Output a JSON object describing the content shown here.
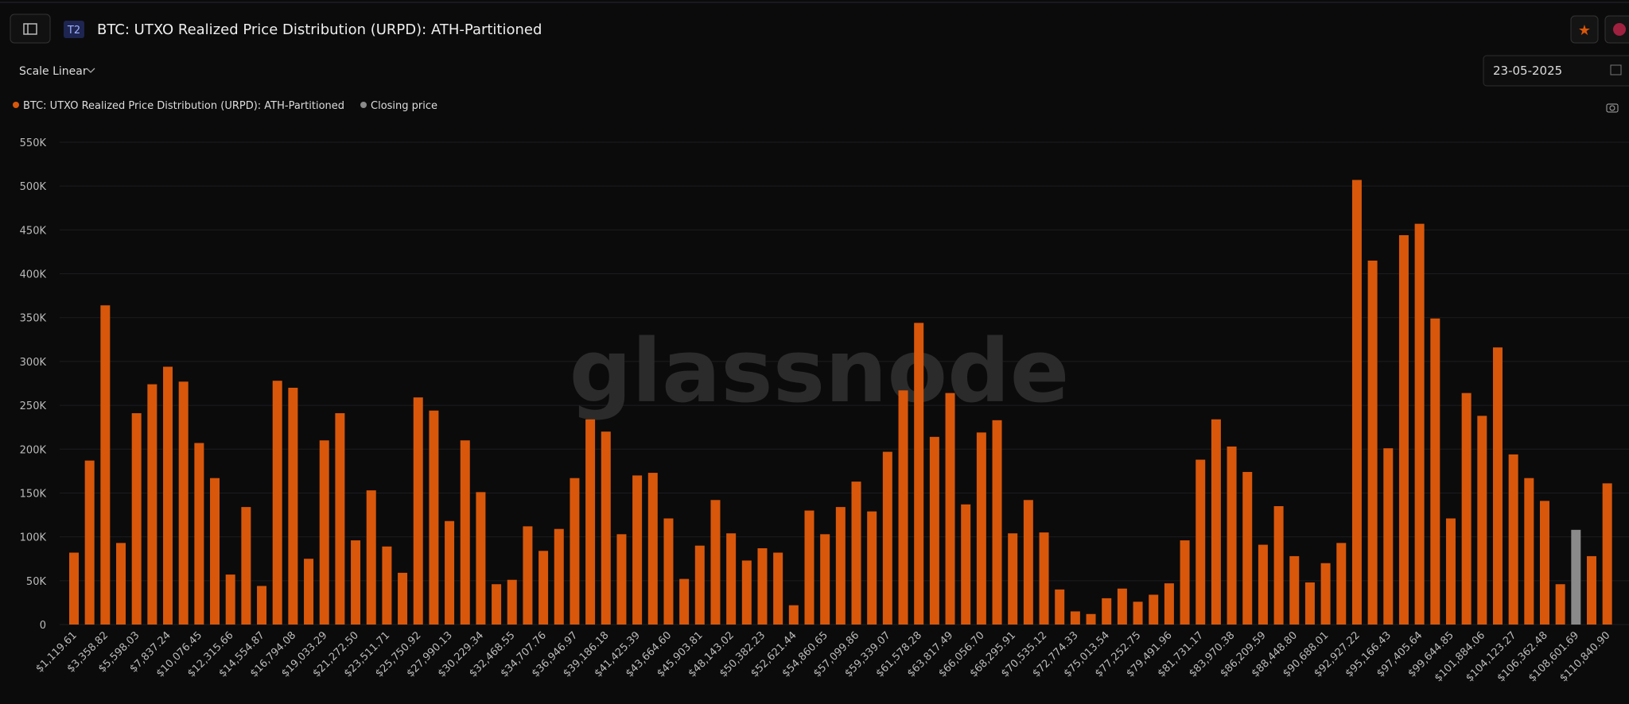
{
  "ui": {
    "badge": "T2",
    "scale_label": "Scale Linear",
    "date": "23-05-2025",
    "watermark": "glassnode"
  },
  "chart_data": {
    "type": "bar",
    "title": "BTC: UTXO Realized Price Distribution (URPD): ATH-Partitioned",
    "categories": [
      "$1,119.61",
      null,
      "$3,358.82",
      null,
      "$5,598.03",
      null,
      "$7,837.24",
      null,
      "$10,076.45",
      null,
      "$12,315.66",
      null,
      "$14,554.87",
      null,
      "$16,794.08",
      null,
      "$19,033.29",
      null,
      "$21,272.50",
      null,
      "$23,511.71",
      null,
      "$25,750.92",
      null,
      "$27,990.13",
      null,
      "$30,229.34",
      null,
      "$32,468.55",
      null,
      "$34,707.76",
      null,
      "$36,946.97",
      null,
      "$39,186.18",
      null,
      "$41,425.39",
      null,
      "$43,664.60",
      null,
      "$45,903.81",
      null,
      "$48,143.02",
      null,
      "$50,382.23",
      null,
      "$52,621.44",
      null,
      "$54,860.65",
      null,
      "$57,099.86",
      null,
      "$59,339.07",
      null,
      "$61,578.28",
      null,
      "$63,817.49",
      null,
      "$66,056.70",
      null,
      "$68,295.91",
      null,
      "$70,535.12",
      null,
      "$72,774.33",
      null,
      "$75,013.54",
      null,
      "$77,252.75",
      null,
      "$79,491.96",
      null,
      "$81,731.17",
      null,
      "$83,970.38",
      null,
      "$86,209.59",
      null,
      "$88,448.80",
      null,
      "$90,688.01",
      null,
      "$92,927.22",
      null,
      "$95,166.43",
      null,
      "$97,405.64",
      null,
      "$99,644.85",
      null,
      "$101,884.06",
      null,
      "$104,123.27",
      null,
      "$106,362.48",
      null,
      "$108,601.69",
      null,
      "$110,840.90"
    ],
    "series": [
      {
        "name": "BTC: UTXO Realized Price Distribution (URPD): ATH-Partitioned",
        "color": "#d9570a",
        "values": [
          82000,
          187000,
          364000,
          93000,
          241000,
          274000,
          294000,
          277000,
          207000,
          167000,
          57000,
          134000,
          44000,
          278000,
          270000,
          75000,
          210000,
          241000,
          96000,
          153000,
          89000,
          59000,
          259000,
          244000,
          118000,
          210000,
          151000,
          46000,
          51000,
          112000,
          84000,
          109000,
          167000,
          234000,
          220000,
          103000,
          170000,
          173000,
          121000,
          52000,
          90000,
          142000,
          104000,
          73000,
          87000,
          82000,
          22000,
          130000,
          103000,
          134000,
          163000,
          129000,
          197000,
          267000,
          344000,
          214000,
          264000,
          137000,
          219000,
          233000,
          104000,
          142000,
          105000,
          40000,
          15000,
          12000,
          30000,
          41000,
          26000,
          34000,
          47000,
          96000,
          188000,
          234000,
          203000,
          174000,
          91000,
          135000,
          78000,
          48000,
          70000,
          93000,
          507000,
          415000,
          201000,
          444000,
          457000,
          349000,
          121000,
          264000,
          238000,
          316000,
          194000,
          167000,
          141000,
          46000,
          null,
          78000,
          161000
        ]
      },
      {
        "name": "Closing price",
        "color": "#8a8a8a",
        "values": [
          null,
          null,
          null,
          null,
          null,
          null,
          null,
          null,
          null,
          null,
          null,
          null,
          null,
          null,
          null,
          null,
          null,
          null,
          null,
          null,
          null,
          null,
          null,
          null,
          null,
          null,
          null,
          null,
          null,
          null,
          null,
          null,
          null,
          null,
          null,
          null,
          null,
          null,
          null,
          null,
          null,
          null,
          null,
          null,
          null,
          null,
          null,
          null,
          null,
          null,
          null,
          null,
          null,
          null,
          null,
          null,
          null,
          null,
          null,
          null,
          null,
          null,
          null,
          null,
          null,
          null,
          null,
          null,
          null,
          null,
          null,
          null,
          null,
          null,
          null,
          null,
          null,
          null,
          null,
          null,
          null,
          null,
          null,
          null,
          null,
          null,
          null,
          null,
          null,
          null,
          null,
          null,
          null,
          null,
          null,
          null,
          108000,
          null,
          null
        ]
      }
    ],
    "ylim": [
      0,
      550000
    ],
    "yticks": [
      0,
      {
        "value": 50000,
        "label": "50K"
      },
      {
        "value": 100000,
        "label": "100K"
      },
      {
        "value": 150000,
        "label": "150K"
      },
      {
        "value": 200000,
        "label": "200K"
      },
      {
        "value": 250000,
        "label": "250K"
      },
      {
        "value": 300000,
        "label": "300K"
      },
      {
        "value": 350000,
        "label": "350K"
      },
      {
        "value": 400000,
        "label": "400K"
      },
      {
        "value": 450000,
        "label": "450K"
      },
      {
        "value": 500000,
        "label": "500K"
      },
      {
        "value": 550000,
        "label": "550K"
      }
    ],
    "grid": true
  }
}
